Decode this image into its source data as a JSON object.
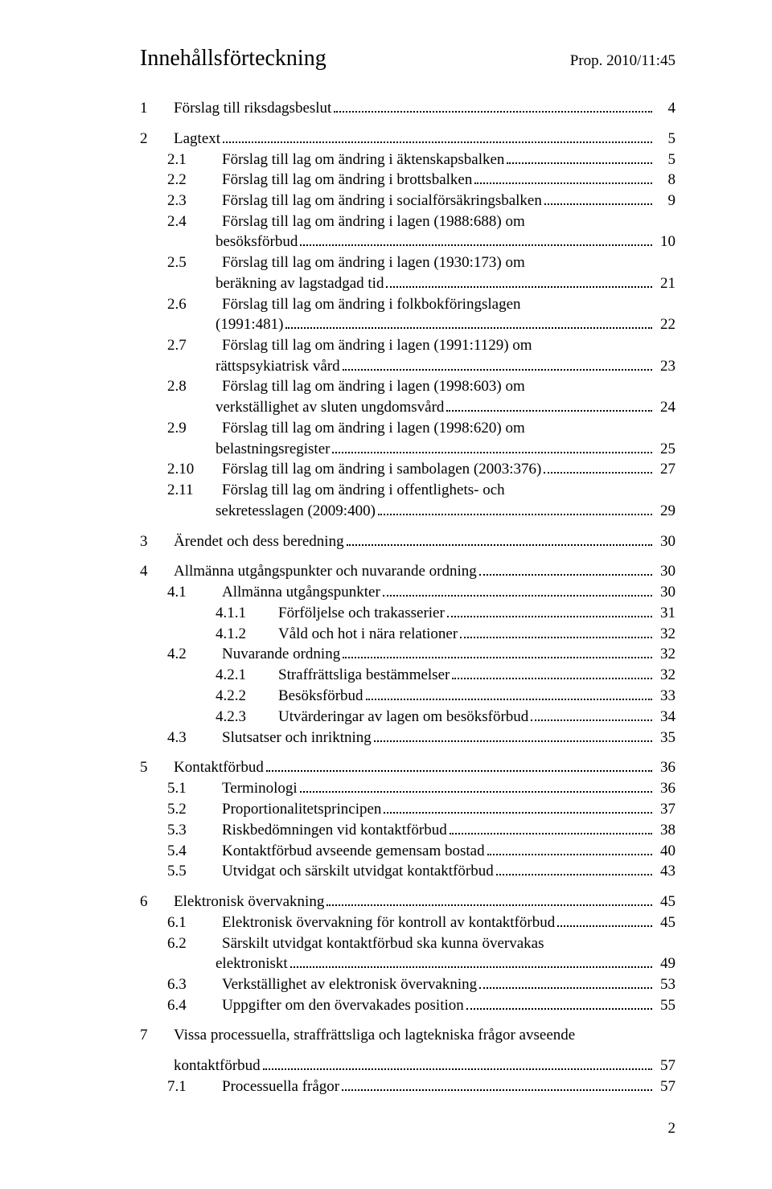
{
  "header": {
    "title": "Innehållsförteckning",
    "ref": "Prop. 2010/11:45"
  },
  "entries": [
    {
      "lvl": 1,
      "num": "1",
      "text": "Förslag till riksdagsbeslut",
      "page": "4"
    },
    {
      "lvl": 1,
      "num": "2",
      "text": "Lagtext",
      "page": "5"
    },
    {
      "lvl": 2,
      "num": "2.1",
      "text": "Förslag till lag om ändring i äktenskapsbalken",
      "page": "5"
    },
    {
      "lvl": 2,
      "num": "2.2",
      "text": "Förslag till lag om ändring i brottsbalken",
      "page": "8"
    },
    {
      "lvl": 2,
      "num": "2.3",
      "text": "Förslag till lag om ändring i socialförsäkringsbalken",
      "page": "9"
    },
    {
      "lvl": 2,
      "num": "2.4",
      "lines": [
        "Förslag till lag om ändring i lagen (1988:688) om",
        "besöksförbud"
      ],
      "page": "10"
    },
    {
      "lvl": 2,
      "num": "2.5",
      "lines": [
        "Förslag till lag om ändring i lagen (1930:173) om",
        "beräkning av lagstadgad tid"
      ],
      "page": "21"
    },
    {
      "lvl": 2,
      "num": "2.6",
      "lines": [
        "Förslag till lag om ändring i folkbokföringslagen",
        "(1991:481)"
      ],
      "page": "22"
    },
    {
      "lvl": 2,
      "num": "2.7",
      "lines": [
        "Förslag till lag om ändring i lagen (1991:1129) om",
        "rättspsykiatrisk vård"
      ],
      "page": "23"
    },
    {
      "lvl": 2,
      "num": "2.8",
      "lines": [
        "Förslag till lag om ändring i lagen (1998:603) om",
        "verkställighet av sluten ungdomsvård"
      ],
      "page": "24"
    },
    {
      "lvl": 2,
      "num": "2.9",
      "lines": [
        "Förslag till lag om ändring i lagen (1998:620) om",
        "belastningsregister"
      ],
      "page": "25"
    },
    {
      "lvl": 2,
      "num": "2.10",
      "text": "Förslag till lag om ändring i sambolagen (2003:376)",
      "page": "27"
    },
    {
      "lvl": 2,
      "num": "2.11",
      "lines": [
        "Förslag till lag om ändring i offentlighets- och",
        "sekretesslagen (2009:400)"
      ],
      "page": "29"
    },
    {
      "lvl": 1,
      "num": "3",
      "text": "Ärendet och dess beredning",
      "page": "30"
    },
    {
      "lvl": 1,
      "num": "4",
      "text": "Allmänna utgångspunkter och nuvarande ordning",
      "page": "30"
    },
    {
      "lvl": 2,
      "num": "4.1",
      "text": "Allmänna utgångspunkter",
      "page": "30"
    },
    {
      "lvl": 3,
      "num": "4.1.1",
      "text": "Förföljelse och trakasserier",
      "page": "31"
    },
    {
      "lvl": 3,
      "num": "4.1.2",
      "text": "Våld och hot i nära relationer",
      "page": "32"
    },
    {
      "lvl": 2,
      "num": "4.2",
      "text": "Nuvarande ordning",
      "page": "32"
    },
    {
      "lvl": 3,
      "num": "4.2.1",
      "text": "Straffrättsliga bestämmelser",
      "page": "32"
    },
    {
      "lvl": 3,
      "num": "4.2.2",
      "text": "Besöksförbud",
      "page": "33"
    },
    {
      "lvl": 3,
      "num": "4.2.3",
      "text": "Utvärderingar av lagen om besöksförbud",
      "page": "34"
    },
    {
      "lvl": 2,
      "num": "4.3",
      "text": "Slutsatser och inriktning",
      "page": "35"
    },
    {
      "lvl": 1,
      "num": "5",
      "text": "Kontaktförbud",
      "page": "36"
    },
    {
      "lvl": 2,
      "num": "5.1",
      "text": "Terminologi",
      "page": "36"
    },
    {
      "lvl": 2,
      "num": "5.2",
      "text": "Proportionalitetsprincipen",
      "page": "37"
    },
    {
      "lvl": 2,
      "num": "5.3",
      "text": "Riskbedömningen vid kontaktförbud",
      "page": "38"
    },
    {
      "lvl": 2,
      "num": "5.4",
      "text": "Kontaktförbud avseende gemensam bostad",
      "page": "40"
    },
    {
      "lvl": 2,
      "num": "5.5",
      "text": "Utvidgat och särskilt utvidgat kontaktförbud",
      "page": "43"
    },
    {
      "lvl": 1,
      "num": "6",
      "text": "Elektronisk övervakning",
      "page": "45"
    },
    {
      "lvl": 2,
      "num": "6.1",
      "text": "Elektronisk övervakning för kontroll av kontaktförbud",
      "page": "45"
    },
    {
      "lvl": 2,
      "num": "6.2",
      "lines": [
        "Särskilt utvidgat kontaktförbud ska kunna övervakas",
        "elektroniskt"
      ],
      "page": "49"
    },
    {
      "lvl": 2,
      "num": "6.3",
      "text": "Verkställighet av elektronisk övervakning",
      "page": "53"
    },
    {
      "lvl": 2,
      "num": "6.4",
      "text": "Uppgifter om den övervakades position",
      "page": "55"
    },
    {
      "lvl": 1,
      "num": "7",
      "lines": [
        "Vissa processuella, straffrättsliga och lagtekniska frågor avseende",
        "kontaktförbud"
      ],
      "contIndent": 1,
      "page": "57"
    },
    {
      "lvl": 2,
      "num": "7.1",
      "text": "Processuella frågor",
      "page": "57"
    }
  ],
  "pageNumber": "2"
}
